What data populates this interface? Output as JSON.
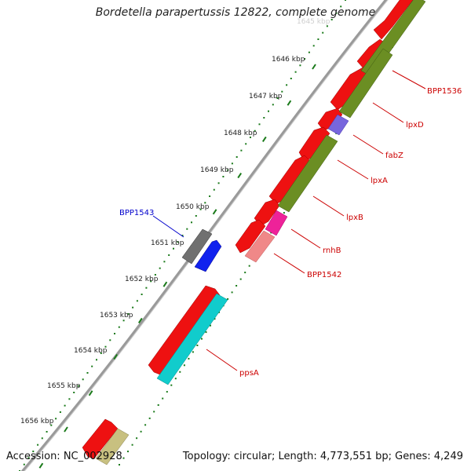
{
  "title": "Bordetella parapertussis 12822, complete genome",
  "footer": {
    "accession": "Accession: NC_002928",
    "summary": "Topology: circular; Length: 4,773,551 bp; Genes: 4,249"
  },
  "colors": {
    "backbone": "#8a8a8a",
    "tick": "#1a7a1a",
    "label_red": "#cc0000",
    "label_blue": "#0000cc"
  },
  "ticks": [
    {
      "label": "1645 kbp"
    },
    {
      "label": "1646 kbp"
    },
    {
      "label": "1647 kbp"
    },
    {
      "label": "1648 kbp"
    },
    {
      "label": "1649 kbp"
    },
    {
      "label": "1650 kbp"
    },
    {
      "label": "1651 kbp"
    },
    {
      "label": "1652 kbp"
    },
    {
      "label": "1653 kbp"
    },
    {
      "label": "1654 kbp"
    },
    {
      "label": "1655 kbp"
    },
    {
      "label": "1656 kbp"
    }
  ],
  "gene_labels": [
    {
      "text": "BPP1536",
      "color": "#cc0000"
    },
    {
      "text": "lpxD",
      "color": "#cc0000"
    },
    {
      "text": "fabZ",
      "color": "#cc0000"
    },
    {
      "text": "lpxA",
      "color": "#cc0000"
    },
    {
      "text": "lpxB",
      "color": "#cc0000"
    },
    {
      "text": "rnhB",
      "color": "#cc0000"
    },
    {
      "text": "BPP1542",
      "color": "#cc0000"
    },
    {
      "text": "ppsA",
      "color": "#cc0000"
    },
    {
      "text": "BPP1543",
      "color": "#0000cc"
    }
  ]
}
